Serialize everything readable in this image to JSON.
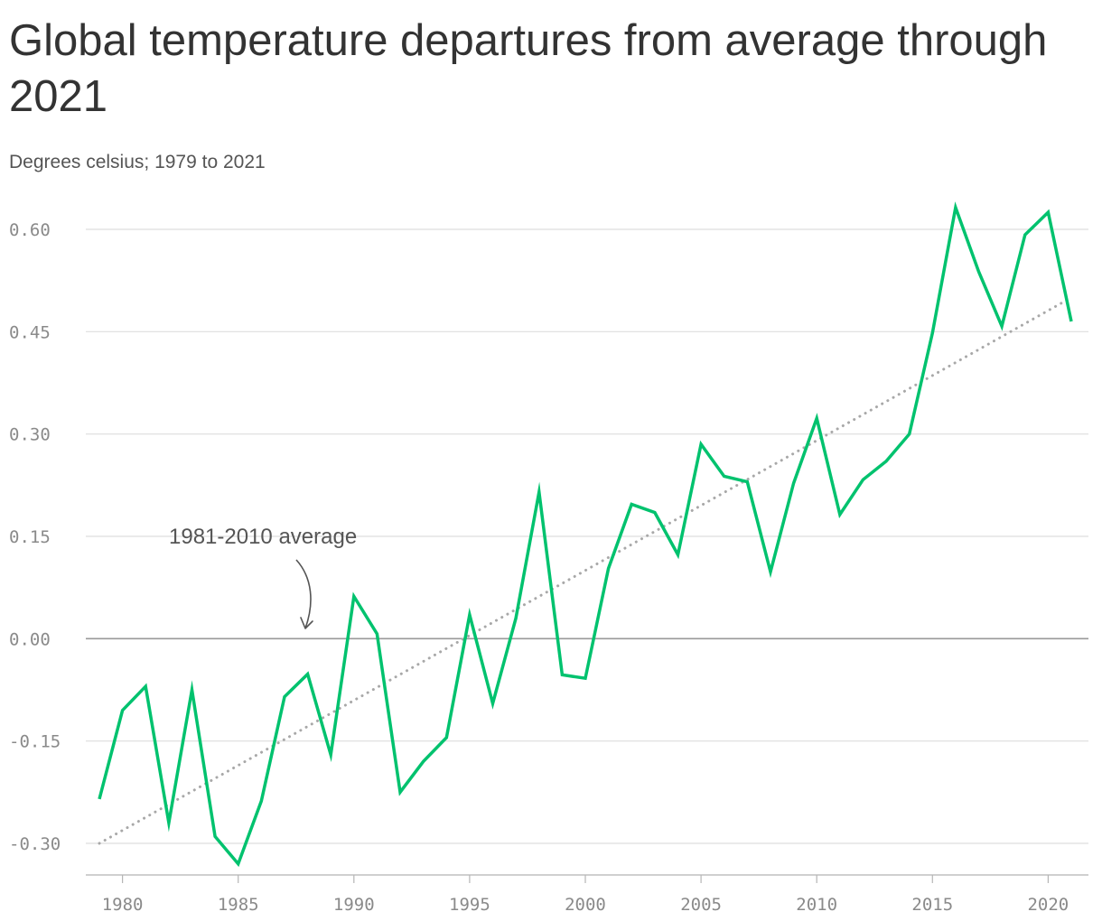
{
  "chart_data": {
    "type": "line",
    "title": "Global temperature departures from average through 2021",
    "subtitle": "Degrees celsius; 1979 to 2021",
    "xlabel": "",
    "ylabel": "",
    "xlim": [
      1979,
      2021
    ],
    "ylim": [
      -0.3,
      0.6
    ],
    "y_ticks": [
      -0.3,
      -0.15,
      0.0,
      0.15,
      0.3,
      0.45,
      0.6
    ],
    "y_tick_labels": [
      "-0.30",
      "-0.15",
      "0.00",
      "0.15",
      "0.30",
      "0.45",
      "0.60"
    ],
    "x_ticks": [
      1980,
      1985,
      1990,
      1995,
      2000,
      2005,
      2010,
      2015,
      2020
    ],
    "x_tick_labels": [
      "1980",
      "1985",
      "1990",
      "1995",
      "2000",
      "2005",
      "2010",
      "2015",
      "2020"
    ],
    "grid": true,
    "series": [
      {
        "color": "#00c26e",
        "x": [
          1979,
          1980,
          1981,
          1982,
          1983,
          1984,
          1985,
          1986,
          1987,
          1988,
          1989,
          1990,
          1991,
          1992,
          1993,
          1994,
          1995,
          1996,
          1997,
          1998,
          1999,
          2000,
          2001,
          2002,
          2003,
          2004,
          2005,
          2006,
          2007,
          2008,
          2009,
          2010,
          2011,
          2012,
          2013,
          2014,
          2015,
          2016,
          2017,
          2018,
          2019,
          2020,
          2021
        ],
        "values": [
          -0.235,
          -0.105,
          -0.07,
          -0.27,
          -0.075,
          -0.29,
          -0.33,
          -0.238,
          -0.085,
          -0.052,
          -0.17,
          0.062,
          0.007,
          -0.225,
          -0.18,
          -0.145,
          0.035,
          -0.095,
          0.03,
          0.215,
          -0.053,
          -0.058,
          0.103,
          0.197,
          0.185,
          0.123,
          0.285,
          0.238,
          0.23,
          0.098,
          0.228,
          0.323,
          0.182,
          0.233,
          0.26,
          0.3,
          0.448,
          0.632,
          0.538,
          0.458,
          0.592,
          0.625,
          0.465
        ]
      },
      {
        "name": "1981-2010 average",
        "color": "#a8a8a8",
        "style": "dotted",
        "x": [
          1979,
          2021
        ],
        "values": [
          -0.3,
          0.5
        ]
      }
    ],
    "annotations": [
      {
        "text": "1981-2010 average",
        "target_x": 1988,
        "target_y": 0.01
      }
    ]
  }
}
